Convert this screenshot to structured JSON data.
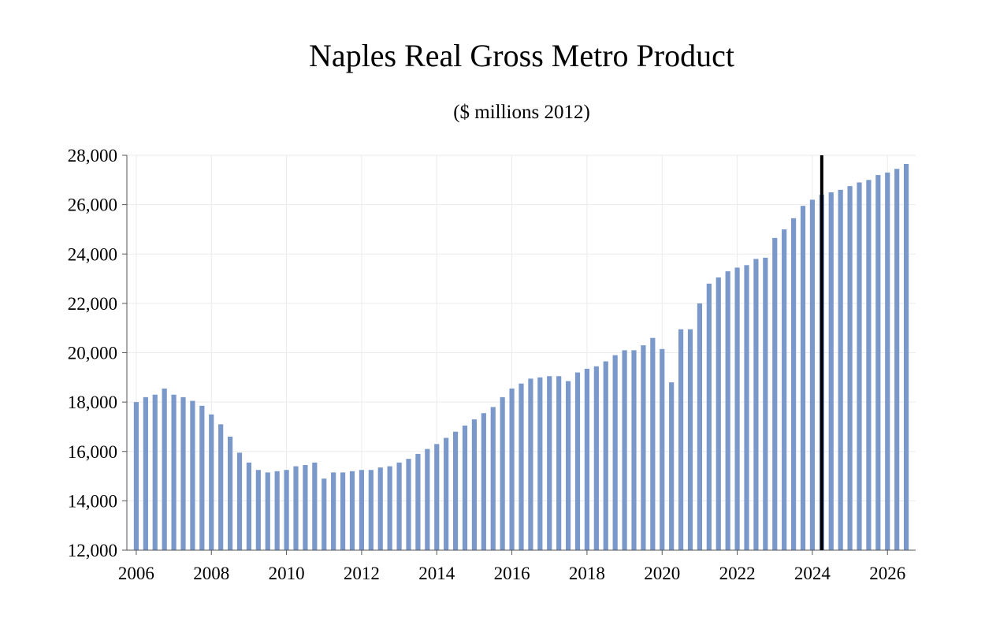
{
  "chart_data": {
    "type": "bar",
    "title": "Naples Real Gross Metro Product",
    "subtitle": "($ millions 2012)",
    "xlabel": "",
    "ylabel": "",
    "ylim": [
      12000,
      28000
    ],
    "yticks": [
      12000,
      14000,
      16000,
      18000,
      20000,
      22000,
      24000,
      26000,
      28000
    ],
    "ytick_labels": [
      "12,000",
      "14,000",
      "16,000",
      "18,000",
      "20,000",
      "22,000",
      "24,000",
      "26,000",
      "28,000"
    ],
    "xlim": [
      2005.75,
      2026.75
    ],
    "xticks": [
      2006,
      2008,
      2010,
      2012,
      2014,
      2016,
      2018,
      2020,
      2022,
      2024,
      2026
    ],
    "xtick_labels": [
      "2006",
      "2008",
      "2010",
      "2012",
      "2014",
      "2016",
      "2018",
      "2020",
      "2022",
      "2024",
      "2026"
    ],
    "grid": true,
    "bar_color": "#7b98ca",
    "forecast_marker_x": 2024.25,
    "forecast_marker_color": "#000000",
    "start_period": 2006.0,
    "period_step": 0.25,
    "values": [
      18000,
      18200,
      18300,
      18550,
      18300,
      18200,
      18050,
      17850,
      17500,
      17100,
      16600,
      15950,
      15550,
      15250,
      15150,
      15200,
      15250,
      15400,
      15450,
      15550,
      14900,
      15150,
      15150,
      15200,
      15250,
      15250,
      15350,
      15400,
      15550,
      15700,
      15900,
      16100,
      16300,
      16550,
      16800,
      17050,
      17300,
      17550,
      17800,
      18200,
      18550,
      18750,
      18950,
      19000,
      19050,
      19050,
      18850,
      19200,
      19350,
      19450,
      19650,
      19900,
      20100,
      20100,
      20300,
      20600,
      20150,
      18800,
      20950,
      20950,
      22000,
      22800,
      23050,
      23300,
      23450,
      23550,
      23800,
      23850,
      24650,
      25000,
      25450,
      25950,
      26200,
      26400,
      26500,
      26600,
      26750,
      26900,
      27000,
      27200,
      27300,
      27450,
      27650
    ]
  }
}
